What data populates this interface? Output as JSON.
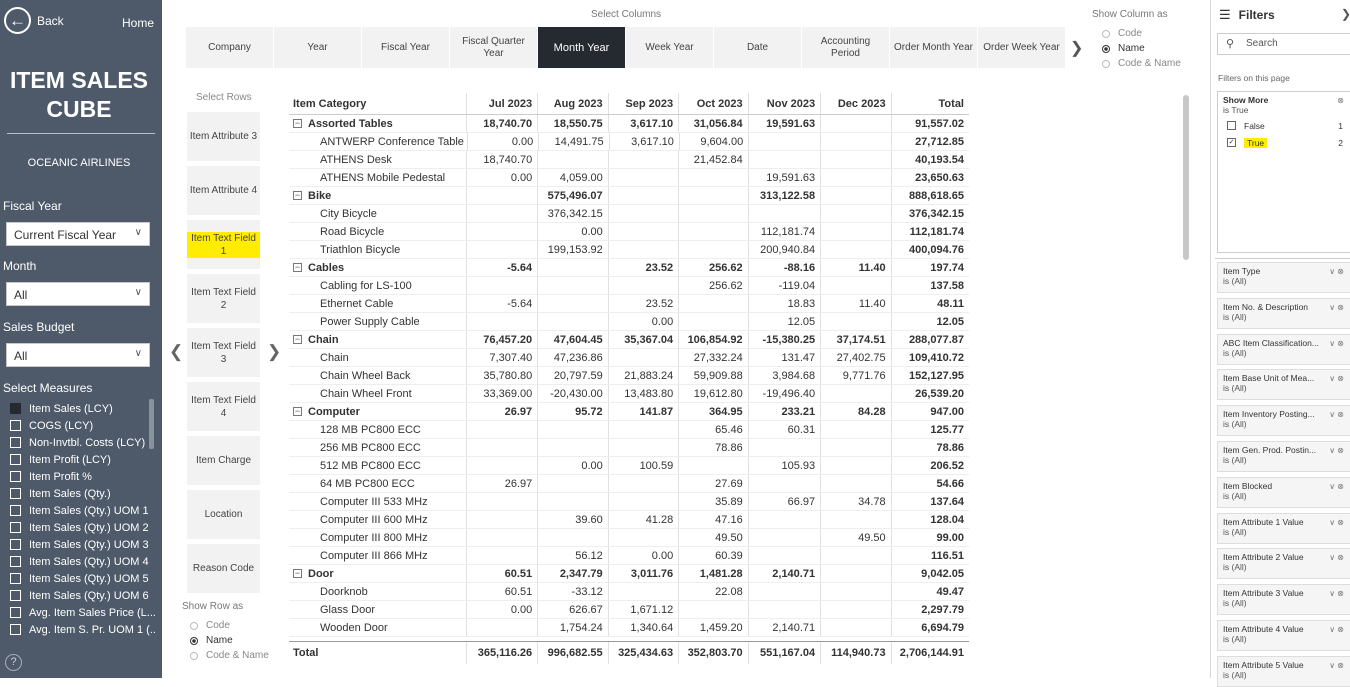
{
  "nav": {
    "back": "Back",
    "home": "Home"
  },
  "app_title": "ITEM SALES CUBE",
  "company": "OCEANIC AIRLINES",
  "slicers": [
    {
      "label": "Fiscal Year",
      "value": "Current Fiscal Year"
    },
    {
      "label": "Month",
      "value": "All"
    },
    {
      "label": "Sales Budget",
      "value": "All"
    }
  ],
  "measures_label": "Select Measures",
  "measures": [
    {
      "label": "Item Sales (LCY)",
      "checked": true
    },
    {
      "label": "COGS (LCY)",
      "checked": false
    },
    {
      "label": "Non-Invtbl. Costs (LCY)",
      "checked": false
    },
    {
      "label": "Item Profit (LCY)",
      "checked": false
    },
    {
      "label": "Item Profit %",
      "checked": false
    },
    {
      "label": "Item Sales (Qty.)",
      "checked": false
    },
    {
      "label": "Item Sales (Qty.) UOM 1",
      "checked": false
    },
    {
      "label": "Item Sales (Qty.) UOM 2",
      "checked": false
    },
    {
      "label": "Item Sales (Qty.) UOM 3",
      "checked": false
    },
    {
      "label": "Item Sales (Qty.) UOM 4",
      "checked": false
    },
    {
      "label": "Item Sales (Qty.) UOM 5",
      "checked": false
    },
    {
      "label": "Item Sales (Qty.) UOM 6",
      "checked": false
    },
    {
      "label": "Avg. Item Sales Price (L...",
      "checked": false
    },
    {
      "label": "Avg. Item S. Pr. UOM 1 (...",
      "checked": false
    }
  ],
  "help": "?",
  "select_columns": "Select Columns",
  "columns": [
    "Company",
    "Year",
    "Fiscal Year",
    "Fiscal Quarter Year",
    "Month Year",
    "Week Year",
    "Date",
    "Accounting Period",
    "Order Month Year",
    "Order Week Year"
  ],
  "active_column": "Month Year",
  "show_column_as": {
    "label": "Show Column as",
    "options": [
      "Code",
      "Name",
      "Code & Name"
    ],
    "selected": "Name"
  },
  "select_rows": "Select Rows",
  "rows": [
    "Item Attribute 3",
    "Item Attribute 4",
    "Item Text Field 1",
    "Item Text Field 2",
    "Item Text Field 3",
    "Item Text Field 4",
    "Item Charge",
    "Location",
    "Reason Code"
  ],
  "active_row": "Item Text Field 1",
  "show_row_as": {
    "label": "Show Row as",
    "options": [
      "Code",
      "Name",
      "Code & Name"
    ],
    "selected": "Name"
  },
  "matrix": {
    "headers": [
      "Item Category",
      "Jul 2023",
      "Aug 2023",
      "Sep 2023",
      "Oct 2023",
      "Nov 2023",
      "Dec 2023",
      "Total"
    ],
    "rows": [
      {
        "cat": true,
        "cells": [
          "Assorted Tables",
          "18,740.70",
          "18,550.75",
          "3,617.10",
          "31,056.84",
          "19,591.63",
          "",
          "91,557.02"
        ]
      },
      {
        "cat": false,
        "cells": [
          "ANTWERP Conference Table",
          "0.00",
          "14,491.75",
          "3,617.10",
          "9,604.00",
          "",
          "",
          "27,712.85"
        ]
      },
      {
        "cat": false,
        "cells": [
          "ATHENS Desk",
          "18,740.70",
          "",
          "",
          "21,452.84",
          "",
          "",
          "40,193.54"
        ]
      },
      {
        "cat": false,
        "cells": [
          "ATHENS Mobile Pedestal",
          "0.00",
          "4,059.00",
          "",
          "",
          "19,591.63",
          "",
          "23,650.63"
        ]
      },
      {
        "cat": true,
        "cells": [
          "Bike",
          "",
          "575,496.07",
          "",
          "",
          "313,122.58",
          "",
          "888,618.65"
        ]
      },
      {
        "cat": false,
        "cells": [
          "City Bicycle",
          "",
          "376,342.15",
          "",
          "",
          "",
          "",
          "376,342.15"
        ]
      },
      {
        "cat": false,
        "cells": [
          "Road Bicycle",
          "",
          "0.00",
          "",
          "",
          "112,181.74",
          "",
          "112,181.74"
        ]
      },
      {
        "cat": false,
        "cells": [
          "Triathlon Bicycle",
          "",
          "199,153.92",
          "",
          "",
          "200,940.84",
          "",
          "400,094.76"
        ]
      },
      {
        "cat": true,
        "cells": [
          "Cables",
          "-5.64",
          "",
          "23.52",
          "256.62",
          "-88.16",
          "11.40",
          "197.74"
        ]
      },
      {
        "cat": false,
        "cells": [
          "Cabling for LS-100",
          "",
          "",
          "",
          "256.62",
          "-119.04",
          "",
          "137.58"
        ]
      },
      {
        "cat": false,
        "cells": [
          "Ethernet Cable",
          "-5.64",
          "",
          "23.52",
          "",
          "18.83",
          "11.40",
          "48.11"
        ]
      },
      {
        "cat": false,
        "cells": [
          "Power Supply Cable",
          "",
          "",
          "0.00",
          "",
          "12.05",
          "",
          "12.05"
        ]
      },
      {
        "cat": true,
        "cells": [
          "Chain",
          "76,457.20",
          "47,604.45",
          "35,367.04",
          "106,854.92",
          "-15,380.25",
          "37,174.51",
          "288,077.87"
        ]
      },
      {
        "cat": false,
        "cells": [
          "Chain",
          "7,307.40",
          "47,236.86",
          "",
          "27,332.24",
          "131.47",
          "27,402.75",
          "109,410.72"
        ]
      },
      {
        "cat": false,
        "cells": [
          "Chain Wheel Back",
          "35,780.80",
          "20,797.59",
          "21,883.24",
          "59,909.88",
          "3,984.68",
          "9,771.76",
          "152,127.95"
        ]
      },
      {
        "cat": false,
        "cells": [
          "Chain Wheel Front",
          "33,369.00",
          "-20,430.00",
          "13,483.80",
          "19,612.80",
          "-19,496.40",
          "",
          "26,539.20"
        ]
      },
      {
        "cat": true,
        "cells": [
          "Computer",
          "26.97",
          "95.72",
          "141.87",
          "364.95",
          "233.21",
          "84.28",
          "947.00"
        ]
      },
      {
        "cat": false,
        "cells": [
          "128 MB PC800 ECC",
          "",
          "",
          "",
          "65.46",
          "60.31",
          "",
          "125.77"
        ]
      },
      {
        "cat": false,
        "cells": [
          "256 MB PC800 ECC",
          "",
          "",
          "",
          "78.86",
          "",
          "",
          "78.86"
        ]
      },
      {
        "cat": false,
        "cells": [
          "512 MB PC800 ECC",
          "",
          "0.00",
          "100.59",
          "",
          "105.93",
          "",
          "206.52"
        ]
      },
      {
        "cat": false,
        "cells": [
          "64 MB PC800 ECC",
          "26.97",
          "",
          "",
          "27.69",
          "",
          "",
          "54.66"
        ]
      },
      {
        "cat": false,
        "cells": [
          "Computer III 533 MHz",
          "",
          "",
          "",
          "35.89",
          "66.97",
          "34.78",
          "137.64"
        ]
      },
      {
        "cat": false,
        "cells": [
          "Computer III 600 MHz",
          "",
          "39.60",
          "41.28",
          "47.16",
          "",
          "",
          "128.04"
        ]
      },
      {
        "cat": false,
        "cells": [
          "Computer III 800 MHz",
          "",
          "",
          "",
          "49.50",
          "",
          "49.50",
          "99.00"
        ]
      },
      {
        "cat": false,
        "cells": [
          "Computer III 866 MHz",
          "",
          "56.12",
          "0.00",
          "60.39",
          "",
          "",
          "116.51"
        ]
      },
      {
        "cat": true,
        "cells": [
          "Door",
          "60.51",
          "2,347.79",
          "3,011.76",
          "1,481.28",
          "2,140.71",
          "",
          "9,042.05"
        ]
      },
      {
        "cat": false,
        "cells": [
          "Doorknob",
          "60.51",
          "-33.12",
          "",
          "22.08",
          "",
          "",
          "49.47"
        ]
      },
      {
        "cat": false,
        "cells": [
          "Glass Door",
          "0.00",
          "626.67",
          "1,671.12",
          "",
          "",
          "",
          "2,297.79"
        ]
      },
      {
        "cat": false,
        "cells": [
          "Wooden Door",
          "",
          "1,754.24",
          "1,340.64",
          "1,459.20",
          "2,140.71",
          "",
          "6,694.79"
        ]
      }
    ],
    "total": [
      "Total",
      "365,116.26",
      "996,682.55",
      "325,434.63",
      "352,803.70",
      "551,167.04",
      "114,940.73",
      "2,706,144.91"
    ]
  },
  "filters": {
    "title": "Filters",
    "search": "Search",
    "on_page": "Filters on this page",
    "show_more": {
      "title": "Show More",
      "state": "is True",
      "options": [
        {
          "label": "False",
          "count": "1",
          "checked": false
        },
        {
          "label": "True",
          "count": "2",
          "checked": true
        }
      ]
    },
    "cards": [
      {
        "title": "Item Type",
        "state": "is (All)"
      },
      {
        "title": "Item No. & Description",
        "state": "is (All)"
      },
      {
        "title": "ABC Item Classification...",
        "state": "is (All)"
      },
      {
        "title": "Item Base Unit of Mea...",
        "state": "is (All)"
      },
      {
        "title": "Item Inventory Posting...",
        "state": "is (All)"
      },
      {
        "title": "Item Gen. Prod. Postin...",
        "state": "is (All)"
      },
      {
        "title": "Item Blocked",
        "state": "is (All)"
      },
      {
        "title": "Item Attribute 1 Value",
        "state": "is (All)"
      },
      {
        "title": "Item Attribute 2 Value",
        "state": "is (All)"
      },
      {
        "title": "Item Attribute 3 Value",
        "state": "is (All)"
      },
      {
        "title": "Item Attribute 4 Value",
        "state": "is (All)"
      },
      {
        "title": "Item Attribute 5 Value",
        "state": "is (All)"
      }
    ]
  }
}
